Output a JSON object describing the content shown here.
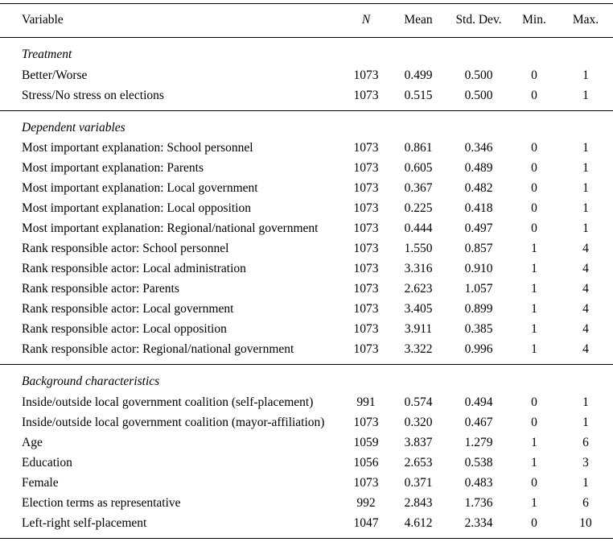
{
  "page": {
    "background_color": "#ffffff",
    "text_color": "#000000"
  },
  "table": {
    "columns": [
      "Variable",
      "N",
      "Mean",
      "Std. Dev.",
      "Min.",
      "Max."
    ],
    "sections": [
      {
        "title": "Treatment",
        "rows": [
          [
            "Better/Worse",
            "1073",
            "0.499",
            "0.500",
            "0",
            "1"
          ],
          [
            "Stress/No stress on elections",
            "1073",
            "0.515",
            "0.500",
            "0",
            "1"
          ]
        ]
      },
      {
        "title": "Dependent variables",
        "rows": [
          [
            "Most important explanation: School personnel",
            "1073",
            "0.861",
            "0.346",
            "0",
            "1"
          ],
          [
            "Most important explanation: Parents",
            "1073",
            "0.605",
            "0.489",
            "0",
            "1"
          ],
          [
            "Most important explanation: Local government",
            "1073",
            "0.367",
            "0.482",
            "0",
            "1"
          ],
          [
            "Most important explanation: Local opposition",
            "1073",
            "0.225",
            "0.418",
            "0",
            "1"
          ],
          [
            "Most important explanation: Regional/national government",
            "1073",
            "0.444",
            "0.497",
            "0",
            "1"
          ],
          [
            "Rank responsible actor: School personnel",
            "1073",
            "1.550",
            "0.857",
            "1",
            "4"
          ],
          [
            "Rank responsible actor: Local administration",
            "1073",
            "3.316",
            "0.910",
            "1",
            "4"
          ],
          [
            "Rank responsible actor: Parents",
            "1073",
            "2.623",
            "1.057",
            "1",
            "4"
          ],
          [
            "Rank responsible actor: Local government",
            "1073",
            "3.405",
            "0.899",
            "1",
            "4"
          ],
          [
            "Rank responsible actor: Local opposition",
            "1073",
            "3.911",
            "0.385",
            "1",
            "4"
          ],
          [
            "Rank responsible actor: Regional/national government",
            "1073",
            "3.322",
            "0.996",
            "1",
            "4"
          ]
        ]
      },
      {
        "title": "Background characteristics",
        "rows": [
          [
            "Inside/outside local government coalition (self-placement)",
            "991",
            "0.574",
            "0.494",
            "0",
            "1"
          ],
          [
            "Inside/outside local government coalition (mayor-affiliation)",
            "1073",
            "0.320",
            "0.467",
            "0",
            "1"
          ],
          [
            "Age",
            "1059",
            "3.837",
            "1.279",
            "1",
            "6"
          ],
          [
            "Education",
            "1056",
            "2.653",
            "0.538",
            "1",
            "3"
          ],
          [
            "Female",
            "1073",
            "0.371",
            "0.483",
            "0",
            "1"
          ],
          [
            "Election terms as representative",
            "992",
            "2.843",
            "1.736",
            "1",
            "6"
          ],
          [
            "Left-right self-placement",
            "1047",
            "4.612",
            "2.334",
            "0",
            "10"
          ]
        ]
      }
    ]
  }
}
